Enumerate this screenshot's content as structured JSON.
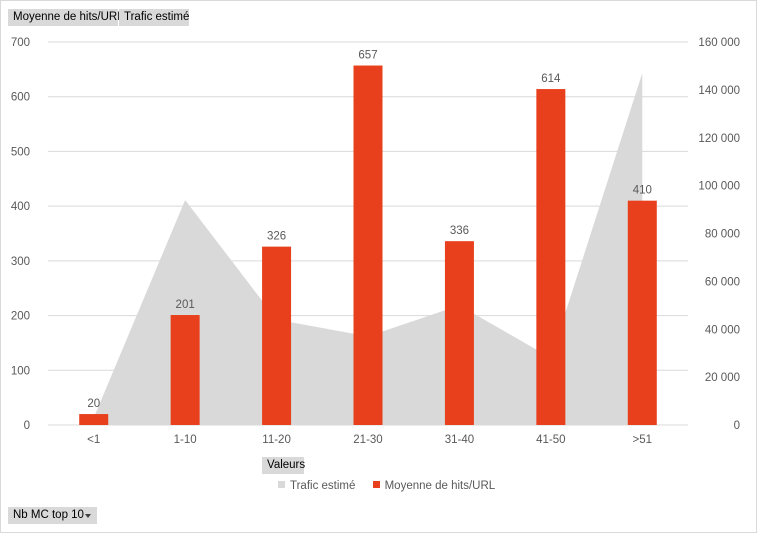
{
  "field_buttons": {
    "moyenne": "Moyenne de hits/URL",
    "trafic": "Trafic estimé",
    "valeurs": "Valeurs",
    "filter": "Nb MC top 10"
  },
  "legend": {
    "trafic": "Trafic estimé",
    "moyenne": "Moyenne de hits/URL"
  },
  "colors": {
    "bar": "#e8401c",
    "area": "#d9d9d9",
    "grid": "#d9d9d9",
    "text": "#595959"
  },
  "chart_data": {
    "type": "bar",
    "title": "",
    "categories": [
      "<1",
      "1-10",
      "11-20",
      "21-30",
      "31-40",
      "41-50",
      ">51"
    ],
    "series": [
      {
        "name": "Moyenne de hits/URL",
        "type": "bar",
        "axis": "left",
        "values": [
          20,
          201,
          326,
          657,
          336,
          614,
          410
        ]
      },
      {
        "name": "Trafic estimé",
        "type": "area",
        "axis": "right",
        "values": [
          3000,
          94000,
          44000,
          37000,
          50000,
          28000,
          147000
        ]
      }
    ],
    "y_left": {
      "min": 0,
      "max": 700,
      "ticks": [
        "0",
        "100",
        "200",
        "300",
        "400",
        "500",
        "600",
        "700"
      ]
    },
    "y_right": {
      "min": 0,
      "max": 160000,
      "ticks": [
        "0",
        "20 000",
        "40 000",
        "60 000",
        "80 000",
        "100 000",
        "120 000",
        "140 000",
        "160 000"
      ]
    },
    "data_labels": [
      "20",
      "201",
      "326",
      "657",
      "336",
      "614",
      "410"
    ],
    "grid": true,
    "legend_position": "bottom"
  }
}
